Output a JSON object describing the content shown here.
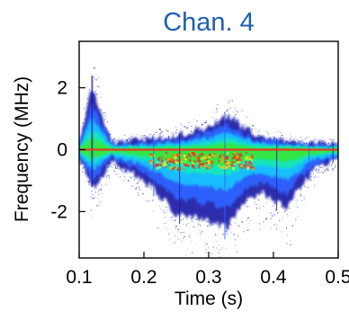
{
  "chart_data": {
    "type": "heatmap",
    "title": "Chan. 4",
    "xlabel": "Time (s)",
    "ylabel": "Frequency (MHz)",
    "xlim": [
      0.1,
      0.5
    ],
    "ylim": [
      -3.5,
      3.5
    ],
    "x_ticks": [
      0.1,
      0.2,
      0.3,
      0.4,
      0.5
    ],
    "y_ticks": [
      2,
      0,
      -2
    ],
    "x_tick_labels": [
      "0.1",
      "0.2",
      "0.3",
      "0.4",
      "0.5"
    ],
    "y_tick_labels": [
      "2",
      "0",
      "-2"
    ],
    "grid": false,
    "colormap": [
      "#1e1ea8",
      "#2f63ff",
      "#14c3ff",
      "#18e7b7",
      "#35e640",
      "#d5ff2f",
      "#ffa000",
      "#ef2f21"
    ],
    "series": [
      {
        "x": [
          0.1,
          0.12,
          0.15,
          0.2,
          0.25,
          0.3,
          0.33,
          0.35,
          0.38,
          0.42,
          0.46,
          0.5
        ],
        "y_upper": [
          0.2,
          2.4,
          0.3,
          0.35,
          0.5,
          0.85,
          1.35,
          0.9,
          0.45,
          0.35,
          0.25,
          0.2
        ],
        "y_lower": [
          -0.25,
          -1.6,
          -0.45,
          -1.2,
          -2.5,
          -2.8,
          -3.1,
          -2.2,
          -1.7,
          -2.3,
          -0.8,
          -0.35
        ]
      }
    ]
  },
  "colors": {
    "title": "#1f5fae",
    "axis": "#000000",
    "background": "#ffffff"
  }
}
